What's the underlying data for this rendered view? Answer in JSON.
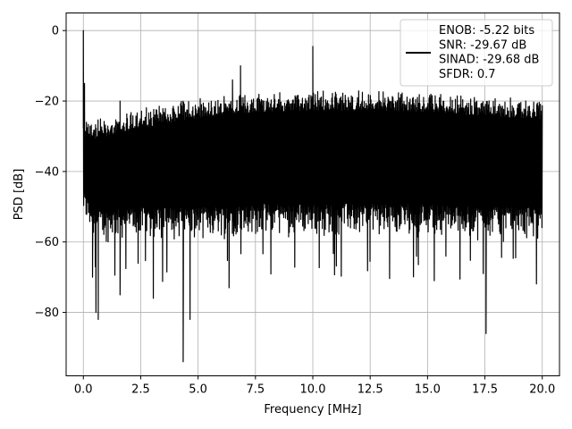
{
  "chart_data": {
    "type": "line",
    "title": "",
    "xlabel": "Frequency [MHz]",
    "ylabel": "PSD [dB]",
    "xlim": [
      -0.75,
      20.75
    ],
    "ylim": [
      -98,
      5
    ],
    "xticks": [
      0.0,
      2.5,
      5.0,
      7.5,
      10.0,
      12.5,
      15.0,
      17.5,
      20.0
    ],
    "xtick_labels": [
      "0.0",
      "2.5",
      "5.0",
      "7.5",
      "10.0",
      "12.5",
      "15.0",
      "17.5",
      "20.0"
    ],
    "yticks": [
      0,
      -20,
      -40,
      -60,
      -80
    ],
    "ytick_labels": [
      "0",
      "−20",
      "−40",
      "−60",
      "−80"
    ],
    "grid": true,
    "legend_position": "top-right",
    "line_color": "#000000",
    "series": [
      {
        "name": "ENOB: -5.22 bits",
        "name_lines": [
          "ENOB: -5.22 bits",
          "SNR: -29.67 dB",
          "SINAD: -29.68 dB",
          "SFDR: 0.7"
        ],
        "description": "Dense noise floor; upper envelope about -25 dB near 0.5 MHz rising to about -17 dB around 9-12 MHz and easing to about -19 dB at 20 MHz; lower envelope about -60 dB with deep dips",
        "envelope": {
          "x": [
            0.0,
            0.5,
            2.5,
            5.0,
            7.5,
            10.0,
            12.5,
            15.0,
            17.5,
            20.0
          ],
          "upper": [
            -23,
            -25,
            -22,
            -19,
            -17.5,
            -17,
            -17,
            -17.5,
            -18.5,
            -19.5
          ],
          "lower": [
            -55,
            -61,
            -60,
            -60,
            -59,
            -59,
            -59,
            -59,
            -60,
            -60
          ]
        },
        "peaks": [
          {
            "x": 0.0,
            "y": 0.0
          },
          {
            "x": 0.05,
            "y": -15
          },
          {
            "x": 1.6,
            "y": -20
          },
          {
            "x": 6.5,
            "y": -14
          },
          {
            "x": 6.85,
            "y": -10
          },
          {
            "x": 10.0,
            "y": -4.5
          }
        ],
        "dips": [
          {
            "x": 0.4,
            "y": -70
          },
          {
            "x": 0.55,
            "y": -80
          },
          {
            "x": 0.65,
            "y": -82
          },
          {
            "x": 1.6,
            "y": -75
          },
          {
            "x": 3.05,
            "y": -76
          },
          {
            "x": 4.35,
            "y": -94
          },
          {
            "x": 4.65,
            "y": -82
          },
          {
            "x": 6.35,
            "y": -73
          },
          {
            "x": 17.55,
            "y": -86
          }
        ]
      }
    ]
  }
}
